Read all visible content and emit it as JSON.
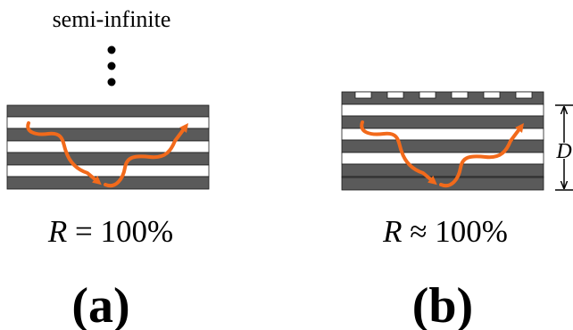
{
  "colors": {
    "layer_dark": "#5a5a5a",
    "layer_light": "#ffffff",
    "layer_outline": "#1a1a1a",
    "path_arrow": "#f26a1b",
    "text": "#000000"
  },
  "panel_a": {
    "top_label": "semi-infinite",
    "reflectance_symbol": "R",
    "reflectance_value": " = 100%",
    "panel_label": "(a)"
  },
  "panel_b": {
    "thickness_label": "D",
    "reflectance_symbol": "R",
    "reflectance_value": " ≈ 100%",
    "panel_label": "(b)"
  }
}
